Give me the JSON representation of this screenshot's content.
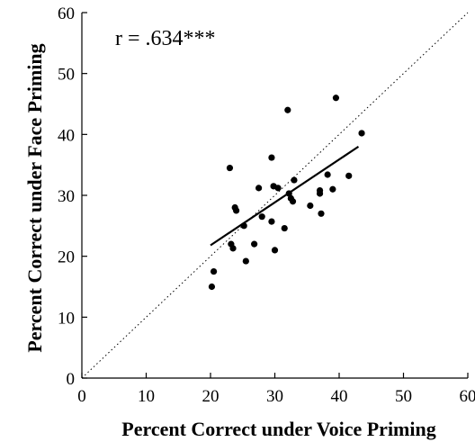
{
  "chart_data": {
    "type": "scatter",
    "xlabel": "Percent Correct under Voice Priming",
    "ylabel": "Percent Correct under Face Priming",
    "xlim": [
      0,
      60
    ],
    "ylim": [
      0,
      60
    ],
    "xticks": [
      "0",
      "10",
      "20",
      "30",
      "40",
      "50",
      "60"
    ],
    "yticks": [
      "0",
      "10",
      "20",
      "30",
      "40",
      "50",
      "60"
    ],
    "annotation": "r = .634***",
    "grid": false,
    "reference_line": {
      "style": "dotted",
      "from": [
        0,
        0
      ],
      "to": [
        60,
        60
      ]
    },
    "regression_line": {
      "from": [
        20,
        21.8
      ],
      "to": [
        43,
        38
      ]
    },
    "points": [
      [
        20.2,
        15
      ],
      [
        20.5,
        17.5
      ],
      [
        23,
        34.5
      ],
      [
        23.2,
        22
      ],
      [
        23.5,
        21.3
      ],
      [
        23.8,
        28
      ],
      [
        24,
        27.5
      ],
      [
        25.2,
        25
      ],
      [
        25.5,
        19.2
      ],
      [
        26.8,
        22
      ],
      [
        27.5,
        31.2
      ],
      [
        28,
        26.5
      ],
      [
        29.5,
        36.2
      ],
      [
        29.5,
        25.7
      ],
      [
        29.8,
        31.5
      ],
      [
        30,
        21
      ],
      [
        30.5,
        31.2
      ],
      [
        31.5,
        24.6
      ],
      [
        32,
        44
      ],
      [
        32.2,
        30.3
      ],
      [
        32.5,
        29.5
      ],
      [
        32.8,
        29
      ],
      [
        33,
        32.5
      ],
      [
        35.5,
        28.3
      ],
      [
        37,
        30.8
      ],
      [
        37,
        30.3
      ],
      [
        37.2,
        27
      ],
      [
        38.2,
        33.4
      ],
      [
        39,
        31
      ],
      [
        39.5,
        46
      ],
      [
        41.5,
        33.2
      ],
      [
        43.5,
        40.2
      ]
    ]
  }
}
